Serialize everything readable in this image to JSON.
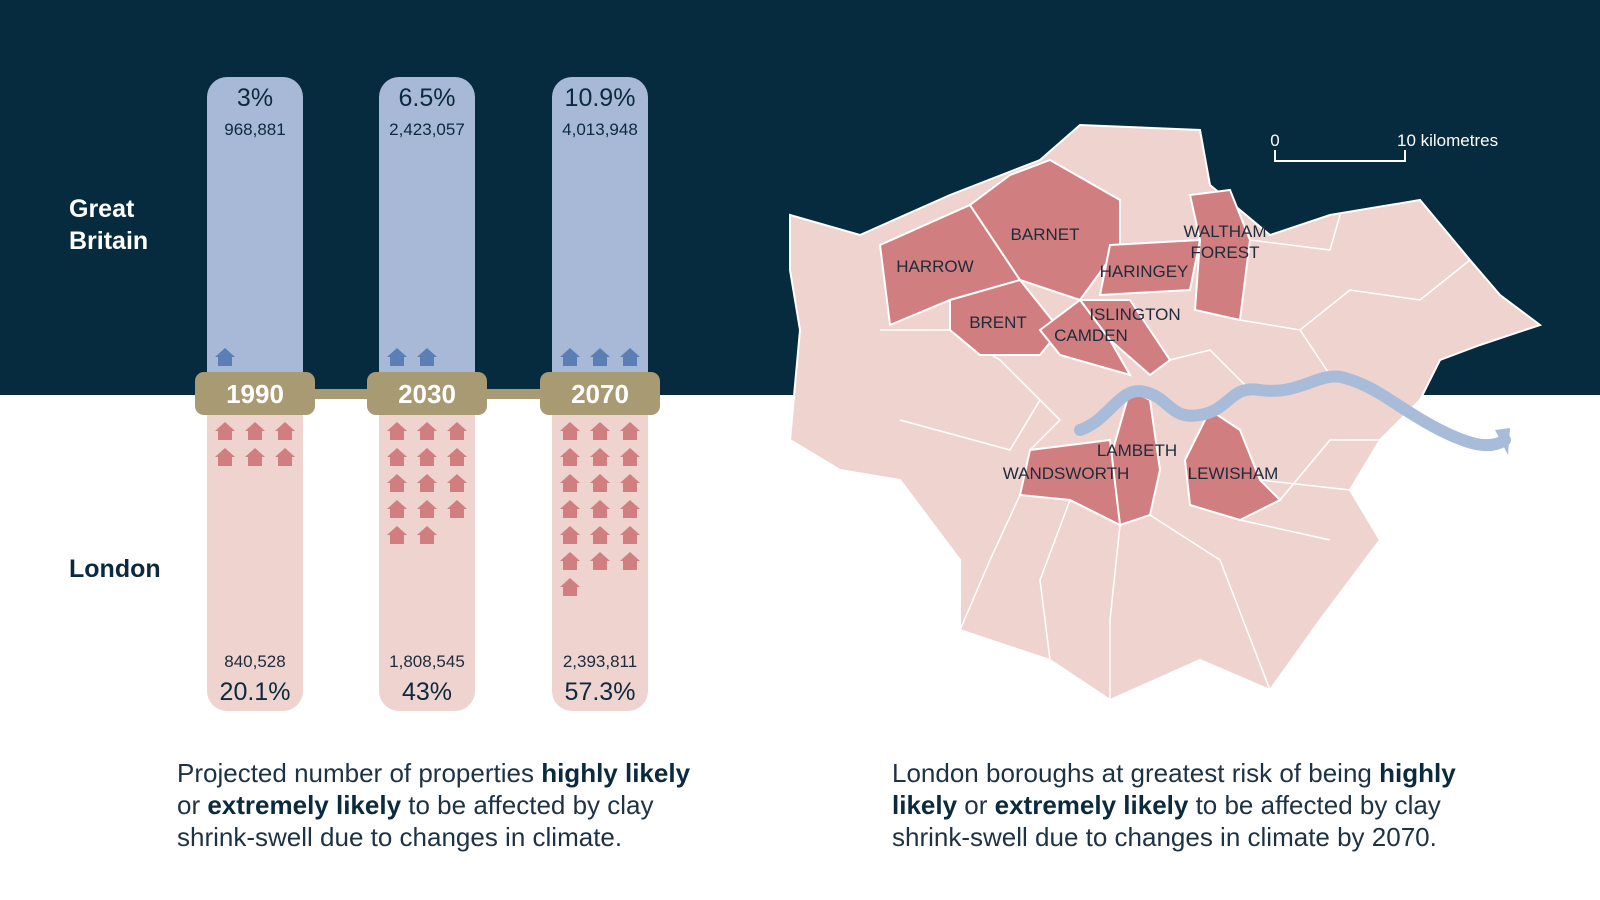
{
  "labels": {
    "great_britain": "Great Britain",
    "london": "London"
  },
  "columns": [
    {
      "year": "1990",
      "gb": {
        "percent": "3%",
        "count": "968,881"
      },
      "london": {
        "count": "840,528",
        "percent": "20.1%"
      }
    },
    {
      "year": "2030",
      "gb": {
        "percent": "6.5%",
        "count": "2,423,057"
      },
      "london": {
        "count": "1,808,545",
        "percent": "43%"
      }
    },
    {
      "year": "2070",
      "gb": {
        "percent": "10.9%",
        "count": "4,013,948"
      },
      "london": {
        "count": "2,393,811",
        "percent": "57.3%"
      }
    }
  ],
  "map": {
    "scale": {
      "start": "0",
      "end": "10 kilometres"
    },
    "boroughs": [
      "HARROW",
      "BARNET",
      "WALTHAM FOREST",
      "HARINGEY",
      "ISLINGTON",
      "BRENT",
      "CAMDEN",
      "LAMBETH",
      "WANDSWORTH",
      "LEWISHAM"
    ]
  },
  "captions": {
    "left": [
      "Projected number of properties ",
      "highly likely",
      "or ",
      "extremely likely",
      " to be affected by clay",
      "shrink-swell due to changes in climate."
    ],
    "right": [
      "London boroughs at greatest risk of being ",
      "highly",
      "likely",
      " or ",
      "extremely likely",
      " to be affected by clay",
      "shrink-swell due to changes in climate by 2070."
    ]
  }
}
